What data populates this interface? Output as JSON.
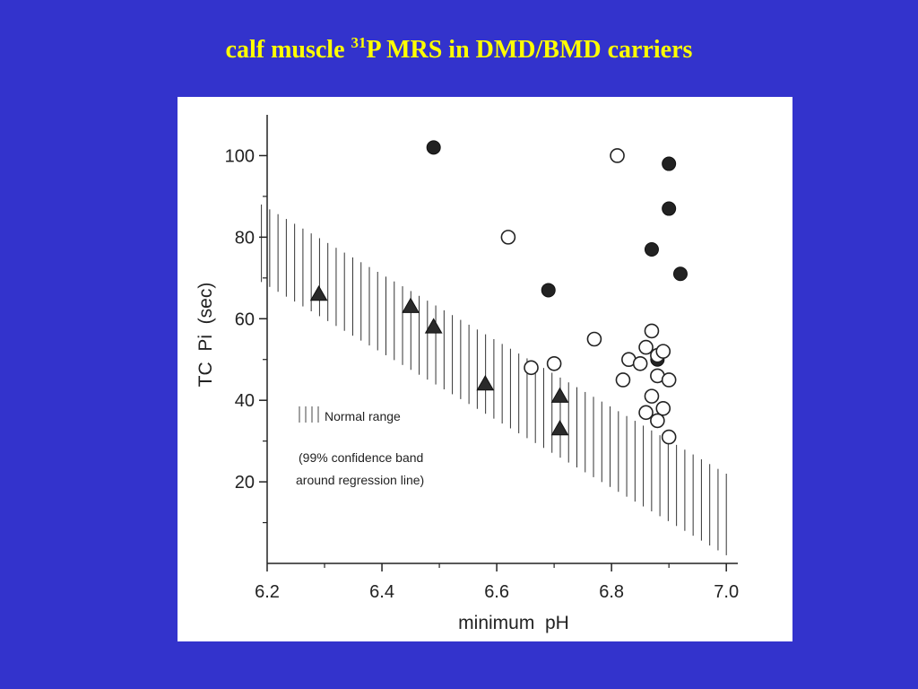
{
  "slide": {
    "title_prefix": "calf muscle ",
    "title_superscript": "31",
    "title_suffix": "P MRS in DMD/BMD carriers",
    "background": "#3333cc",
    "title_color": "#ffff00"
  },
  "chart_data": {
    "type": "scatter",
    "xlabel": "minimum  pH",
    "ylabel": "TC  Pi  (sec)",
    "xlim": [
      6.2,
      7.02
    ],
    "ylim": [
      0,
      110
    ],
    "xticks": [
      "6.2",
      "6.4",
      "6.6",
      "6.8",
      "7.0"
    ],
    "xtick_values": [
      6.2,
      6.4,
      6.6,
      6.8,
      7.0
    ],
    "yticks": [
      "20",
      "40",
      "60",
      "80",
      "100"
    ],
    "ytick_values": [
      20,
      40,
      60,
      80,
      100
    ],
    "grid": false,
    "legend_position": "lower-left",
    "legend": {
      "label": "Normal range",
      "note_line1": "(99% confidence band",
      "note_line2": "around regression line)"
    },
    "band": {
      "x": [
        6.19,
        7.0
      ],
      "upper": [
        88,
        22
      ],
      "lower": [
        69,
        2
      ]
    },
    "series": [
      {
        "marker": "triangle",
        "points": [
          [
            6.29,
            66
          ],
          [
            6.45,
            63
          ],
          [
            6.49,
            58
          ],
          [
            6.58,
            44
          ],
          [
            6.71,
            41
          ],
          [
            6.71,
            33
          ]
        ]
      },
      {
        "marker": "filled-circle",
        "points": [
          [
            6.49,
            102
          ],
          [
            6.69,
            67
          ],
          [
            6.87,
            77
          ],
          [
            6.9,
            98
          ],
          [
            6.9,
            87
          ],
          [
            6.92,
            71
          ],
          [
            6.88,
            50
          ]
        ]
      },
      {
        "marker": "open-circle",
        "points": [
          [
            6.81,
            100
          ],
          [
            6.62,
            80
          ],
          [
            6.77,
            55
          ],
          [
            6.66,
            48
          ],
          [
            6.7,
            49
          ],
          [
            6.83,
            50
          ],
          [
            6.85,
            49
          ],
          [
            6.86,
            53
          ],
          [
            6.87,
            57
          ],
          [
            6.88,
            51
          ],
          [
            6.88,
            46
          ],
          [
            6.89,
            52
          ],
          [
            6.9,
            45
          ],
          [
            6.82,
            45
          ],
          [
            6.87,
            41
          ],
          [
            6.89,
            38
          ],
          [
            6.86,
            37
          ],
          [
            6.88,
            35
          ],
          [
            6.9,
            31
          ]
        ]
      }
    ]
  }
}
